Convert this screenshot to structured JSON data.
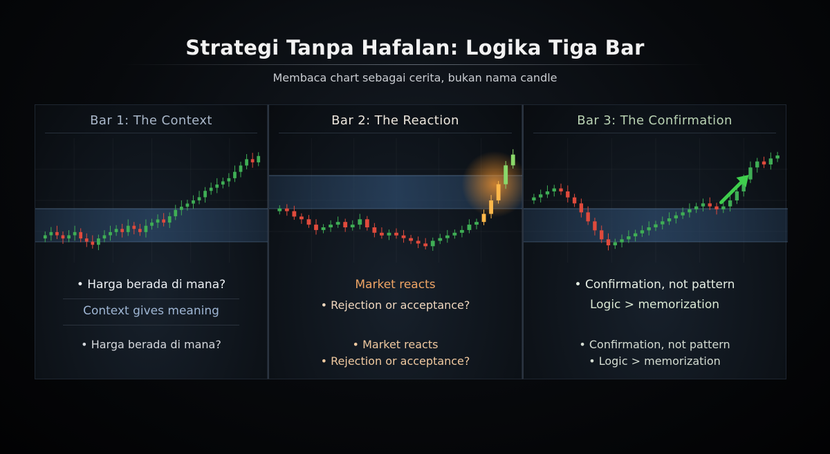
{
  "title": "Strategi Tanpa Hafalan: Logika Tiga Bar",
  "subtitle": "Membaca chart sebagai cerita, bukan nama candle",
  "colors": {
    "bull": "#3fae55",
    "bear": "#e04a3c",
    "glow": "#ff9a2e",
    "zone": "#2c4868",
    "arrow": "#3fce4d"
  },
  "panels": [
    {
      "title": "Bar 1: The Context",
      "lines": [
        "Harga berada di mana?",
        "Context gives meaning",
        "Harga berada di mana?"
      ]
    },
    {
      "title": "Bar 2: The Reaction",
      "lines": [
        "Market reacts",
        "Rejection or acceptance?",
        "Market reacts",
        "Rejection or acceptance?"
      ]
    },
    {
      "title": "Bar 3: The Confirmation",
      "lines": [
        "Confirmation, not pattern",
        "Logic > memorization",
        "Confirmation, not pattern",
        "Logic > memorization"
      ]
    }
  ],
  "chart_data": [
    {
      "type": "candlestick",
      "title": "",
      "trend": "consolidation then uptrend",
      "closes": [
        100,
        101,
        100,
        99,
        100,
        101,
        99,
        98,
        97,
        99,
        100,
        101,
        102,
        101,
        103,
        102,
        101,
        103,
        104,
        105,
        104,
        106,
        108,
        109,
        110,
        111,
        112,
        114,
        115,
        116,
        117,
        118,
        120,
        122,
        124,
        123,
        125
      ]
    },
    {
      "type": "candlestick",
      "title": "",
      "trend": "decline, base, sharp reaction",
      "closes": [
        110,
        109,
        107,
        106,
        104,
        102,
        103,
        104,
        105,
        103,
        104,
        106,
        103,
        101,
        100,
        101,
        100,
        99,
        98,
        97,
        96,
        98,
        99,
        100,
        101,
        102,
        104,
        105,
        108,
        113,
        119,
        126,
        130
      ]
    },
    {
      "type": "candlestick",
      "title": "",
      "trend": "decline, base, confirmed breakout",
      "closes": [
        108,
        109,
        110,
        111,
        110,
        108,
        106,
        103,
        100,
        97,
        94,
        92,
        93,
        94,
        95,
        96,
        97,
        98,
        99,
        100,
        101,
        102,
        103,
        104,
        105,
        106,
        105,
        104,
        105,
        107,
        110,
        114,
        118,
        120,
        119,
        121,
        122
      ]
    }
  ]
}
